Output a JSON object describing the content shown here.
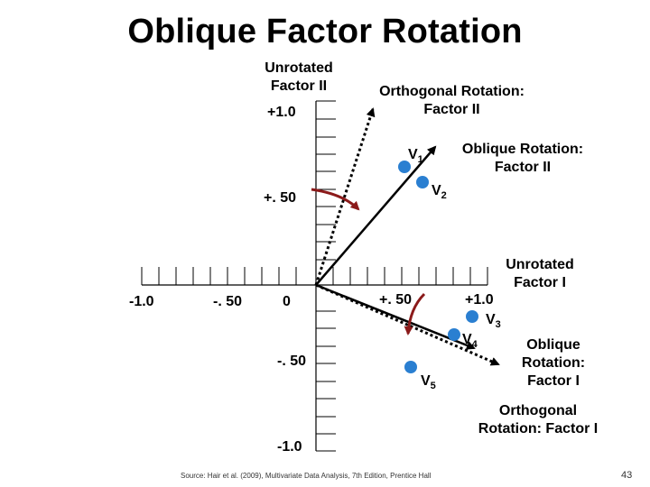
{
  "title": "Oblique Factor Rotation",
  "labels": {
    "unrotated_factor_2": [
      "Unrotated",
      "Factor II"
    ],
    "orthogonal_factor_2": [
      "Orthogonal Rotation:",
      "Factor II"
    ],
    "oblique_factor_2": [
      "Oblique Rotation:",
      "Factor II"
    ],
    "unrotated_factor_1": [
      "Unrotated",
      "Factor I"
    ],
    "oblique_factor_1": [
      "Oblique",
      "Rotation:",
      "Factor I"
    ],
    "orthogonal_factor_1": [
      "Orthogonal",
      "Rotation: Factor I"
    ]
  },
  "ticks": {
    "y_pos_1": "+1.0",
    "y_pos_half": "+. 50",
    "x_neg_1": "-1.0",
    "x_neg_half": "-. 50",
    "origin": "0",
    "x_pos_half": "+. 50",
    "x_pos_1": "+1.0",
    "y_neg_half": "-. 50",
    "y_neg_1": "-1.0"
  },
  "variables": [
    {
      "name": "V",
      "sub": "1"
    },
    {
      "name": "V",
      "sub": "2"
    },
    {
      "name": "V",
      "sub": "3"
    },
    {
      "name": "V",
      "sub": "4"
    },
    {
      "name": "V",
      "sub": "5"
    }
  ],
  "colors": {
    "point": "#2a7fd1",
    "rotation_arc": "#8b1a1a",
    "axis": "#000000"
  },
  "source": "Source: Hair et al. (2009), Multivariate Data Analysis, 7th Edition, Prentice Hall",
  "page_number": "43"
}
